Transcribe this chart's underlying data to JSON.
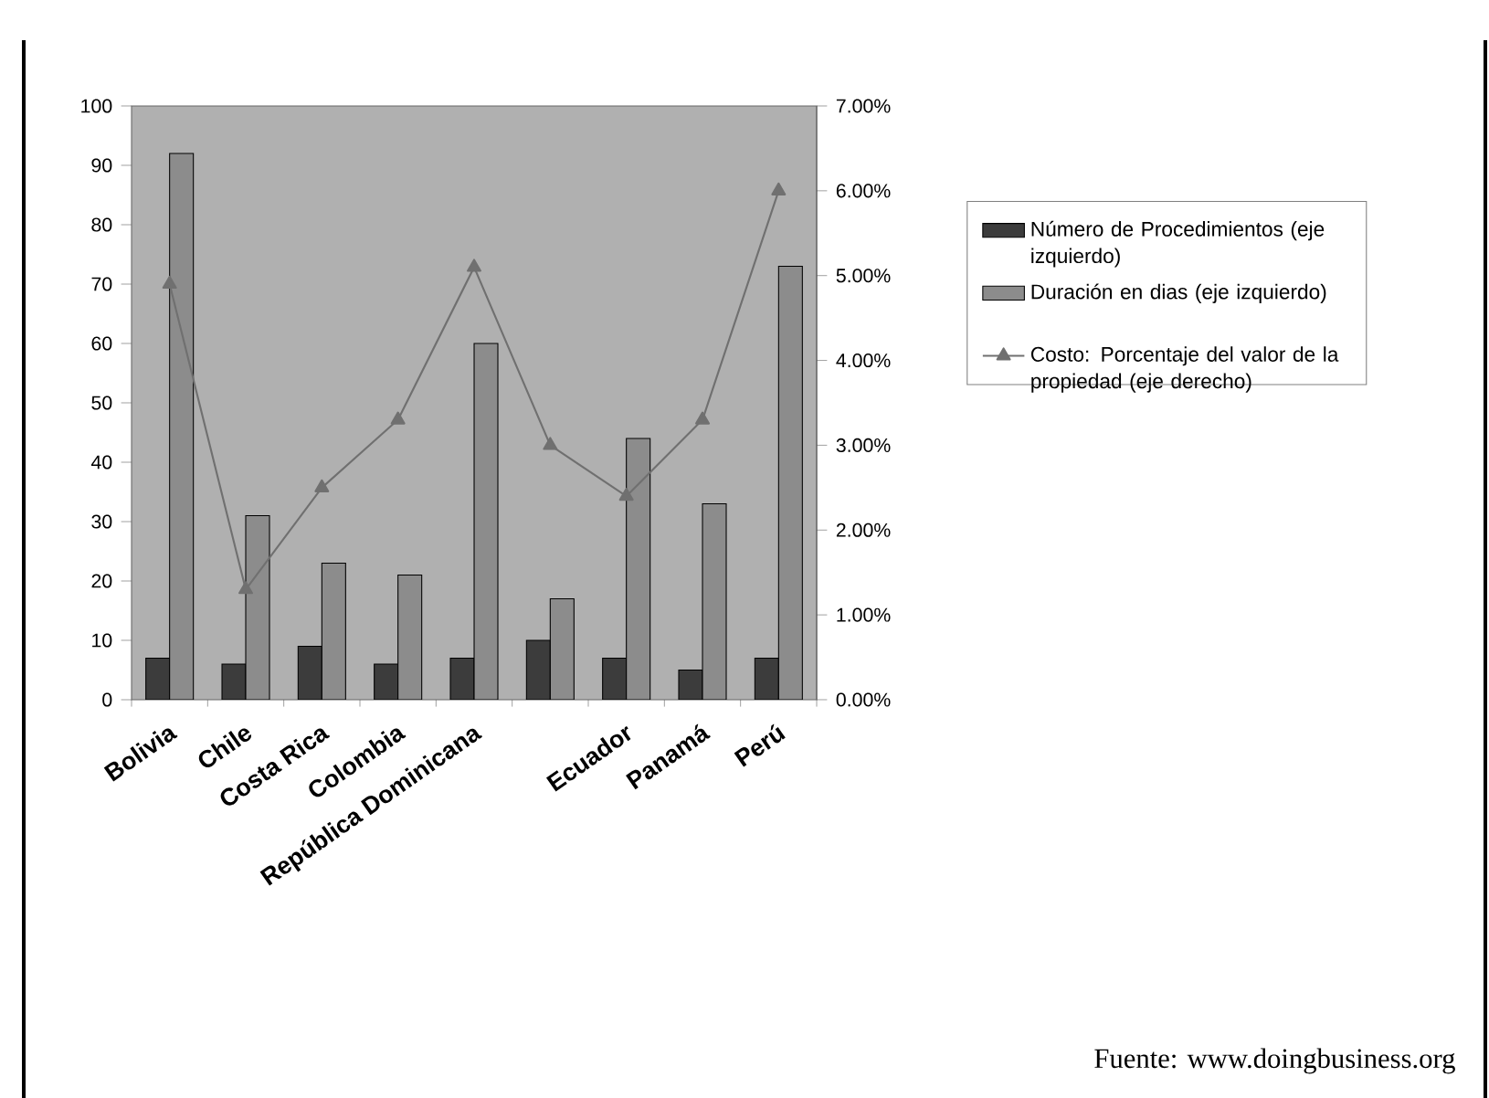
{
  "chart_data": {
    "type": "bar",
    "categories": [
      "Bolivia",
      "Chile",
      "Costa Rica",
      "Colombia",
      "República Dominicana",
      null,
      "Ecuador",
      "Panamá",
      "Perú"
    ],
    "series": [
      {
        "name": "Número de Procedimientos (eje izquierdo)",
        "color": "#3c3c3c",
        "values": [
          7,
          6,
          9,
          6,
          7,
          10,
          7,
          5,
          7
        ]
      },
      {
        "name": "Duración en dias (eje izquierdo)",
        "color": "#8c8c8c",
        "values": [
          92,
          31,
          23,
          21,
          60,
          17,
          44,
          33,
          73
        ]
      },
      {
        "name": "Costo: Porcentaje del valor de la propiedad (eje derecho)",
        "type": "line",
        "axis": "y2",
        "color": "#707070",
        "values": [
          4.9,
          1.3,
          2.5,
          3.3,
          5.1,
          3.0,
          2.4,
          3.3,
          6.0
        ]
      }
    ],
    "ylim": [
      0,
      100
    ],
    "yticks": [
      0,
      10,
      20,
      30,
      40,
      50,
      60,
      70,
      80,
      90,
      100
    ],
    "y2lim": [
      0,
      7
    ],
    "y2ticks": [
      {
        "value": 0,
        "label": "0.00%"
      },
      {
        "value": 1,
        "label": "1.00%"
      },
      {
        "value": 2,
        "label": "2.00%"
      },
      {
        "value": 3,
        "label": "3.00%"
      },
      {
        "value": 4,
        "label": "4.00%"
      },
      {
        "value": 5,
        "label": "5.00%"
      },
      {
        "value": 6,
        "label": "6.00%"
      },
      {
        "value": 7,
        "label": "7.00%"
      }
    ],
    "marker": "triangle",
    "legend": "right",
    "annotations": [
      "Fuente: www.doingbusiness.org"
    ]
  }
}
